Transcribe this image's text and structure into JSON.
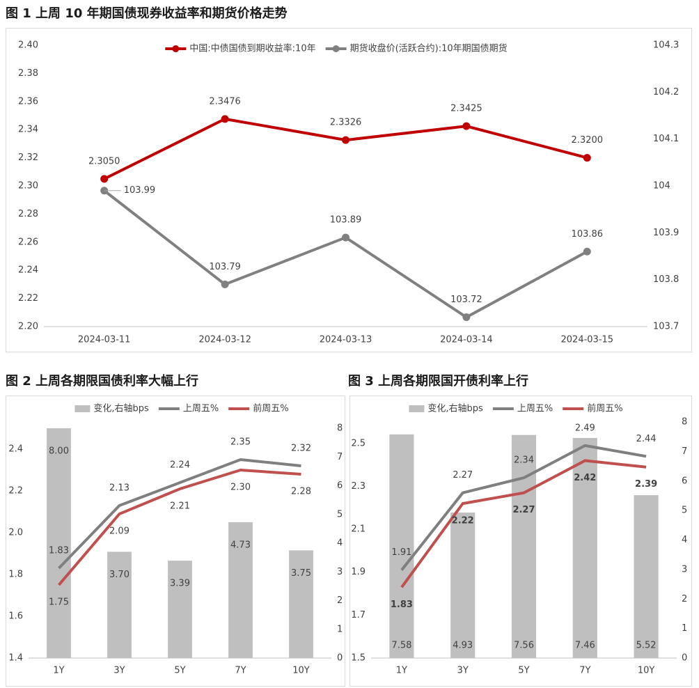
{
  "chart_data": [
    {
      "type": "line",
      "title": "图 1  上周 10 年期国债现券收益率和期货价格走势",
      "categories": [
        "2024-03-11",
        "2024-03-12",
        "2024-03-13",
        "2024-03-14",
        "2024-03-15"
      ],
      "series": [
        {
          "name": "中国:中债国债到期收益率:10年",
          "color": "#c00000",
          "type": "line",
          "values": [
            2.305,
            2.3476,
            2.3326,
            2.3425,
            2.32
          ],
          "value_labels": [
            "2.3050",
            "2.3476",
            "2.3326",
            "2.3425",
            "2.3200"
          ]
        },
        {
          "name": "期货收盘价(活跃合约):10年期国债期货",
          "color": "#808080",
          "type": "line",
          "axis": "y2",
          "values": [
            103.99,
            103.79,
            103.89,
            103.72,
            103.86
          ]
        }
      ],
      "ylim": [
        2.2,
        2.4
      ],
      "yticks": [
        {
          "value": 2.2,
          "label": "2.20"
        },
        {
          "value": 2.22,
          "label": "2.22"
        },
        {
          "value": 2.24,
          "label": "2.24"
        },
        {
          "value": 2.26,
          "label": "2.26"
        },
        {
          "value": 2.28,
          "label": "2.28"
        },
        {
          "value": 2.3,
          "label": "2.30"
        },
        {
          "value": 2.32,
          "label": "2.32"
        },
        {
          "value": 2.34,
          "label": "2.34"
        },
        {
          "value": 2.36,
          "label": "2.36"
        },
        {
          "value": 2.38,
          "label": "2.38"
        },
        {
          "value": 2.4,
          "label": "2.40"
        }
      ],
      "y2lim": [
        103.7,
        104.3
      ],
      "y2ticks": [
        103.7,
        103.8,
        103.9,
        104,
        104.1,
        104.2,
        104.3
      ]
    },
    {
      "type": "combo",
      "title": "图 2  上周各期限国债利率大幅上行",
      "categories": [
        "1Y",
        "3Y",
        "5Y",
        "7Y",
        "10Y"
      ],
      "series": [
        {
          "name": "变化,右轴bps",
          "color": "#bfbfbf",
          "type": "bar",
          "axis": "y2",
          "values": [
            8,
            3.7,
            3.39,
            4.73,
            3.75
          ],
          "value_labels": [
            "8.00",
            "3.70",
            "3.39",
            "4.73",
            "3.75"
          ]
        },
        {
          "name": "上周五%",
          "color": "#7f7f7f",
          "type": "line",
          "values": [
            1.83,
            2.13,
            2.24,
            2.35,
            2.32
          ]
        },
        {
          "name": "前周五%",
          "color": "#c0504d",
          "type": "line",
          "values": [
            1.75,
            2.09,
            2.21,
            2.3,
            2.28
          ],
          "value_labels": [
            "1.75",
            "2.09",
            "2.21",
            "2.30",
            "2.28"
          ]
        }
      ],
      "ylim": [
        1.4,
        2.5
      ],
      "yticks": [
        1.4,
        1.6,
        1.8,
        {
          "value": 2,
          "label": "2.0"
        },
        2.2,
        2.4
      ],
      "y2lim": [
        0,
        8
      ],
      "y2ticks": [
        0,
        1,
        2,
        3,
        4,
        5,
        6,
        7,
        8
      ]
    },
    {
      "type": "combo",
      "title": "图 3  上周各期限国开债利率上行",
      "categories": [
        "1Y",
        "3Y",
        "5Y",
        "7Y",
        "10Y"
      ],
      "series": [
        {
          "name": "变化,右轴bps",
          "color": "#bfbfbf",
          "type": "bar",
          "axis": "y2",
          "values": [
            7.58,
            4.93,
            7.56,
            7.46,
            5.52
          ]
        },
        {
          "name": "上周五%",
          "color": "#7f7f7f",
          "type": "line",
          "values": [
            1.91,
            2.27,
            2.34,
            2.49,
            2.44
          ]
        },
        {
          "name": "前周五%",
          "color": "#c0504d",
          "type": "line",
          "values": [
            1.83,
            2.22,
            2.27,
            2.42,
            2.39
          ]
        }
      ],
      "ylim": [
        1.5,
        2.6
      ],
      "yticks": [
        1.5,
        1.7,
        1.9,
        2.1,
        2.3,
        2.5
      ],
      "y2lim": [
        0,
        8
      ],
      "y2ticks": [
        0,
        1,
        2,
        3,
        4,
        5,
        6,
        7,
        8
      ]
    }
  ]
}
